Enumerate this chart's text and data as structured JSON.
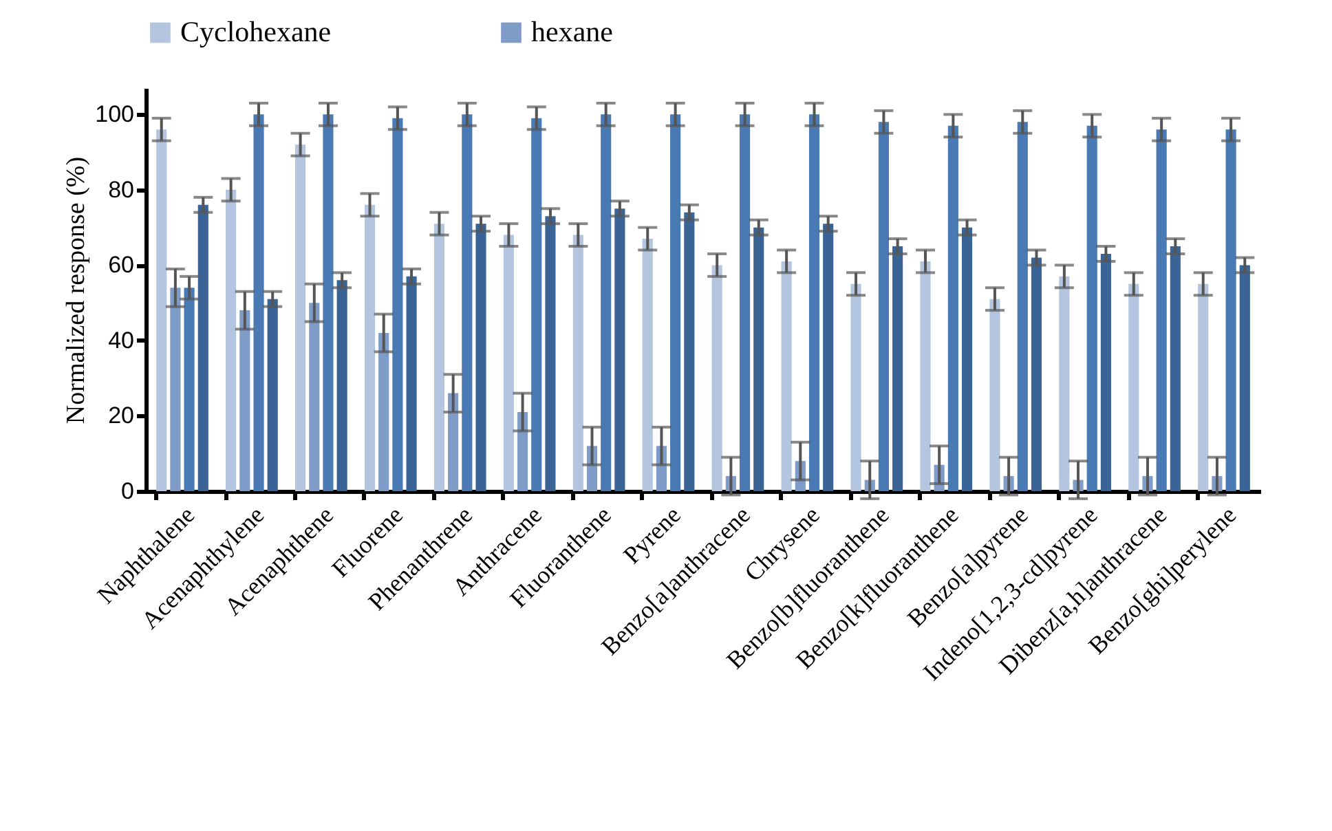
{
  "chart_data": {
    "type": "bar",
    "ylabel": "Normalized response (%)",
    "categories": [
      "Naphthalene",
      "Acenaphthylene",
      "Acenaphthene",
      "Fluorene",
      "Phenanthrene",
      "Anthracene",
      "Fluoranthene",
      "Pyrene",
      "Benzo[a]anthracene",
      "Chrysene",
      "Benzo[b]fluoranthene",
      "Benzo[k]fluoranthene",
      "Benzo[a]pyrene",
      "Indeno[1,2,3-cd]pyrene",
      "Dibenz[a,h]anthracene",
      "Benzo[ghi]perylene"
    ],
    "series": [
      {
        "name": "Cyclohexane",
        "color": "#b4c5e0",
        "values": [
          96,
          80,
          92,
          76,
          71,
          68,
          68,
          67,
          60,
          61,
          55,
          61,
          51,
          57,
          55,
          55
        ],
        "errors": [
          3,
          3,
          3,
          3,
          3,
          3,
          3,
          3,
          3,
          3,
          3,
          3,
          3,
          3,
          3,
          3
        ]
      },
      {
        "name": "hexane",
        "color": "#7f9bc8",
        "values": [
          54,
          48,
          50,
          42,
          26,
          21,
          12,
          12,
          4,
          8,
          3,
          7,
          4,
          3,
          4,
          4
        ],
        "errors": [
          5,
          5,
          5,
          5,
          5,
          5,
          5,
          5,
          5,
          5,
          5,
          5,
          5,
          5,
          5,
          5
        ]
      },
      {
        "color": "#4a7ab4",
        "values": [
          54,
          100,
          100,
          99,
          100,
          99,
          100,
          100,
          100,
          100,
          98,
          97,
          98,
          97,
          96,
          96
        ],
        "errors": [
          3,
          3,
          3,
          3,
          3,
          3,
          3,
          3,
          3,
          3,
          3,
          3,
          3,
          3,
          3,
          3
        ]
      },
      {
        "color": "#3b6496",
        "values": [
          76,
          51,
          56,
          57,
          71,
          73,
          75,
          74,
          70,
          71,
          65,
          70,
          62,
          63,
          65,
          60
        ],
        "errors": [
          2,
          2,
          2,
          2,
          2,
          2,
          2,
          2,
          2,
          2,
          2,
          2,
          2,
          2,
          2,
          2
        ]
      }
    ],
    "ylim": [
      0,
      107
    ],
    "yticks": [
      0,
      20,
      40,
      60,
      80,
      100
    ],
    "grid": false,
    "legend": "top"
  }
}
